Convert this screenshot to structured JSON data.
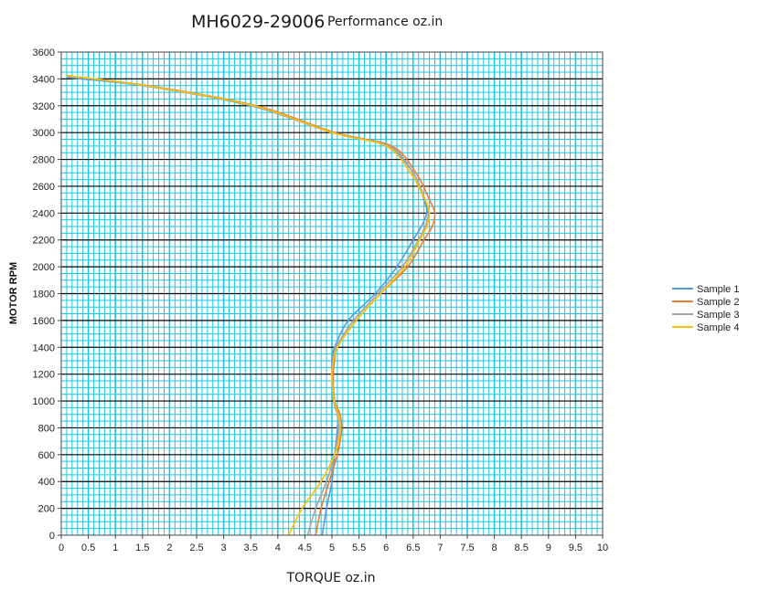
{
  "chart_data": {
    "type": "line",
    "title": "MH6029-29006",
    "subtitle": "Performance oz.in",
    "xlabel": "TORQUE  oz.in",
    "ylabel": "MOTOR RPM",
    "xlim": [
      0,
      10
    ],
    "ylim": [
      0,
      3600
    ],
    "x_ticks": [
      "0",
      "0.5",
      "1",
      "1.5",
      "2",
      "2.5",
      "3",
      "3.5",
      "4",
      "4.5",
      "5",
      "5.5",
      "6",
      "6.5",
      "7",
      "7.5",
      "8",
      "8.5",
      "9",
      "9.5",
      "10"
    ],
    "y_ticks": [
      "0",
      "200",
      "400",
      "600",
      "800",
      "1000",
      "1200",
      "1400",
      "1600",
      "1800",
      "2000",
      "2200",
      "2400",
      "2600",
      "2800",
      "3000",
      "3200",
      "3400",
      "3600"
    ],
    "grid": true,
    "legend_position": "right",
    "colors": {
      "major_grid": "#000000",
      "minor_grid": "#1ec6e6",
      "axis": "#444444"
    },
    "series": [
      {
        "name": "Sample 1",
        "color": "#5b9bd5",
        "x": [
          4.82,
          4.9,
          5.0,
          5.05,
          5.08,
          5.1,
          5.12,
          5.05,
          5.0,
          5.0,
          5.05,
          5.3,
          5.8,
          6.2,
          6.5,
          6.65,
          6.75,
          6.7,
          6.5,
          6.0,
          5.0,
          3.5,
          1.5,
          0.1
        ],
        "y": [
          0,
          200,
          400,
          600,
          700,
          800,
          900,
          1000,
          1200,
          1300,
          1400,
          1600,
          1800,
          2000,
          2200,
          2300,
          2400,
          2500,
          2700,
          2900,
          3000,
          3200,
          3350,
          3410
        ]
      },
      {
        "name": "Sample 2",
        "color": "#ed7d31",
        "x": [
          4.7,
          4.8,
          4.95,
          5.1,
          5.15,
          5.18,
          5.15,
          5.05,
          5.02,
          5.05,
          5.1,
          5.45,
          5.9,
          6.4,
          6.7,
          6.85,
          6.9,
          6.8,
          6.55,
          6.1,
          5.05,
          3.6,
          1.6,
          0.1
        ],
        "y": [
          0,
          200,
          400,
          600,
          700,
          800,
          900,
          1000,
          1200,
          1300,
          1400,
          1600,
          1800,
          2000,
          2200,
          2300,
          2400,
          2500,
          2700,
          2900,
          3000,
          3200,
          3350,
          3420
        ]
      },
      {
        "name": "Sample 3",
        "color": "#a5a5a5",
        "x": [
          4.55,
          4.7,
          4.9,
          5.05,
          5.1,
          5.12,
          5.1,
          5.03,
          5.0,
          5.02,
          5.08,
          5.4,
          5.85,
          6.3,
          6.6,
          6.72,
          6.78,
          6.72,
          6.5,
          6.05,
          5.0,
          3.55,
          1.55,
          0.1
        ],
        "y": [
          0,
          200,
          400,
          600,
          700,
          800,
          900,
          1000,
          1200,
          1300,
          1400,
          1600,
          1800,
          2000,
          2200,
          2300,
          2400,
          2500,
          2700,
          2900,
          3000,
          3200,
          3350,
          3420
        ]
      },
      {
        "name": "Sample 4",
        "color": "#ffc000",
        "x": [
          4.2,
          4.45,
          4.8,
          5.05,
          5.12,
          5.15,
          5.12,
          5.04,
          5.0,
          5.03,
          5.1,
          5.45,
          5.9,
          6.35,
          6.62,
          6.75,
          6.8,
          6.72,
          6.45,
          6.0,
          5.0,
          3.55,
          1.55,
          0.1
        ],
        "y": [
          0,
          200,
          400,
          600,
          700,
          800,
          900,
          1000,
          1200,
          1300,
          1400,
          1600,
          1800,
          2000,
          2200,
          2300,
          2400,
          2500,
          2700,
          2900,
          3000,
          3200,
          3350,
          3425
        ]
      }
    ]
  }
}
